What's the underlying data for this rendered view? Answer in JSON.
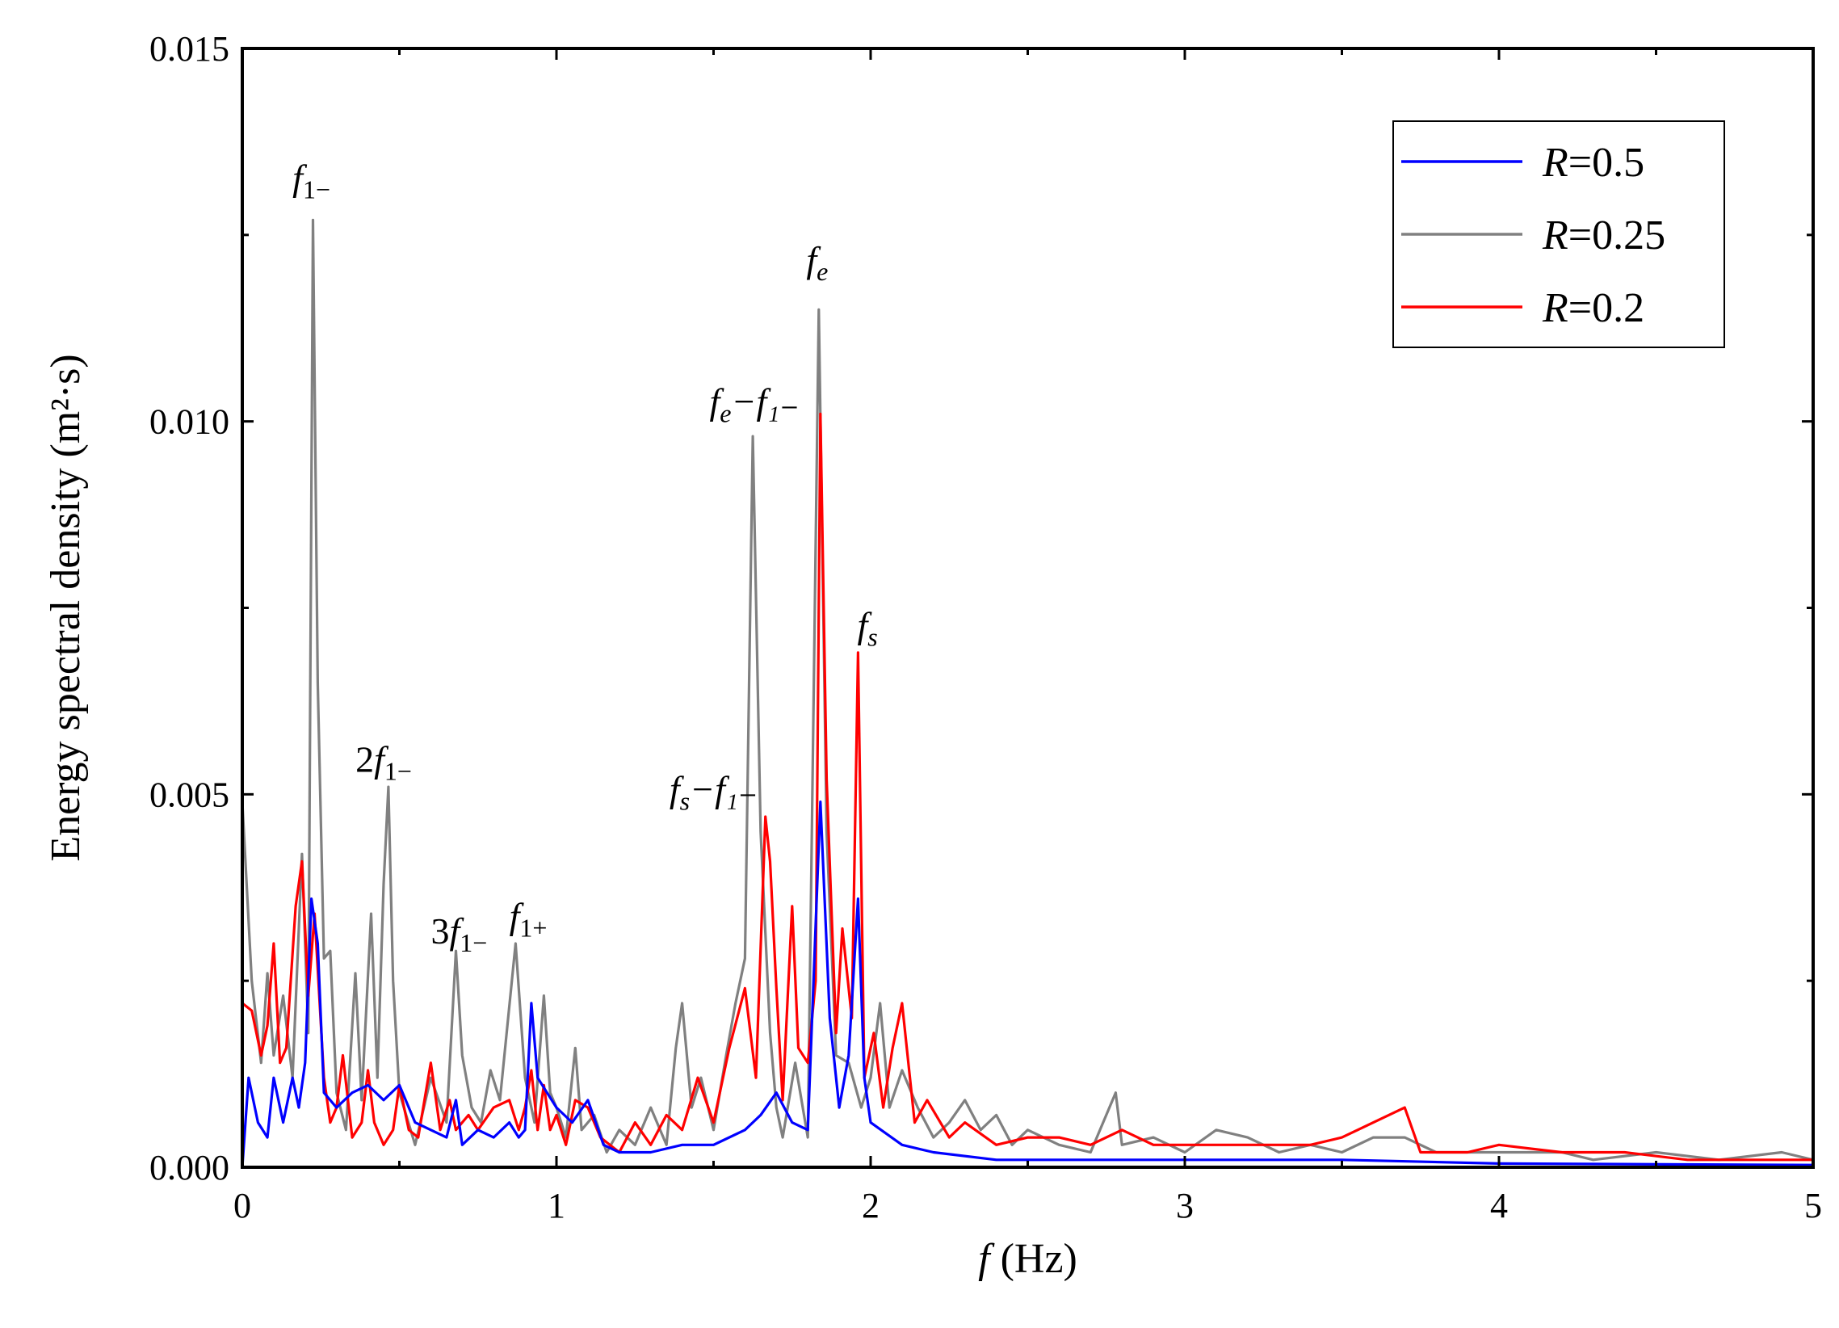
{
  "chart_data": {
    "type": "line",
    "xlabel": {
      "var": "f",
      "unit": " (Hz)"
    },
    "ylabel": "Energy spectral density (m²·s)",
    "xlim": [
      0,
      5
    ],
    "ylim": [
      0,
      0.015
    ],
    "xticks": [
      "0",
      "1",
      "2",
      "3",
      "4",
      "5"
    ],
    "yticks": [
      "0.000",
      "0.005",
      "0.010",
      "0.015"
    ],
    "grid": false,
    "legend_position": "top-right",
    "series": [
      {
        "name": "R=0.5",
        "color": "#0000ff",
        "points": [
          [
            0,
            0
          ],
          [
            0.02,
            0.0012
          ],
          [
            0.05,
            0.0006
          ],
          [
            0.08,
            0.0004
          ],
          [
            0.1,
            0.0012
          ],
          [
            0.13,
            0.0006
          ],
          [
            0.16,
            0.0012
          ],
          [
            0.18,
            0.0008
          ],
          [
            0.2,
            0.0014
          ],
          [
            0.22,
            0.0036
          ],
          [
            0.24,
            0.003
          ],
          [
            0.26,
            0.001
          ],
          [
            0.3,
            0.0008
          ],
          [
            0.35,
            0.001
          ],
          [
            0.4,
            0.0011
          ],
          [
            0.45,
            0.0009
          ],
          [
            0.5,
            0.0011
          ],
          [
            0.55,
            0.0006
          ],
          [
            0.6,
            0.0005
          ],
          [
            0.65,
            0.0004
          ],
          [
            0.68,
            0.0009
          ],
          [
            0.7,
            0.0003
          ],
          [
            0.75,
            0.0005
          ],
          [
            0.8,
            0.0004
          ],
          [
            0.85,
            0.0006
          ],
          [
            0.88,
            0.0004
          ],
          [
            0.9,
            0.0005
          ],
          [
            0.92,
            0.0022
          ],
          [
            0.94,
            0.0012
          ],
          [
            0.97,
            0.001
          ],
          [
            1.0,
            0.0008
          ],
          [
            1.05,
            0.0006
          ],
          [
            1.1,
            0.0009
          ],
          [
            1.15,
            0.0003
          ],
          [
            1.2,
            0.0002
          ],
          [
            1.3,
            0.0002
          ],
          [
            1.4,
            0.0003
          ],
          [
            1.5,
            0.0003
          ],
          [
            1.6,
            0.0005
          ],
          [
            1.65,
            0.0007
          ],
          [
            1.7,
            0.001
          ],
          [
            1.75,
            0.0006
          ],
          [
            1.8,
            0.0005
          ],
          [
            1.84,
            0.0049
          ],
          [
            1.87,
            0.002
          ],
          [
            1.9,
            0.0008
          ],
          [
            1.93,
            0.0015
          ],
          [
            1.96,
            0.0036
          ],
          [
            1.98,
            0.0012
          ],
          [
            2.0,
            0.0006
          ],
          [
            2.1,
            0.0003
          ],
          [
            2.2,
            0.0002
          ],
          [
            2.4,
            0.0001
          ],
          [
            2.6,
            0.0001
          ],
          [
            3.0,
            0.0001
          ],
          [
            3.5,
            0.0001
          ],
          [
            4.0,
            5e-05
          ],
          [
            5.0,
            3e-05
          ]
        ]
      },
      {
        "name": "R=0.25",
        "color": "#808080",
        "points": [
          [
            0,
            0.0049
          ],
          [
            0.03,
            0.0025
          ],
          [
            0.06,
            0.0014
          ],
          [
            0.08,
            0.0026
          ],
          [
            0.1,
            0.0015
          ],
          [
            0.13,
            0.0023
          ],
          [
            0.16,
            0.0012
          ],
          [
            0.19,
            0.0042
          ],
          [
            0.21,
            0.0018
          ],
          [
            0.225,
            0.0127
          ],
          [
            0.24,
            0.0065
          ],
          [
            0.26,
            0.0028
          ],
          [
            0.28,
            0.0029
          ],
          [
            0.3,
            0.001
          ],
          [
            0.33,
            0.0005
          ],
          [
            0.36,
            0.0026
          ],
          [
            0.38,
            0.0009
          ],
          [
            0.41,
            0.0034
          ],
          [
            0.43,
            0.0012
          ],
          [
            0.45,
            0.0038
          ],
          [
            0.465,
            0.0051
          ],
          [
            0.48,
            0.0025
          ],
          [
            0.5,
            0.001
          ],
          [
            0.55,
            0.0003
          ],
          [
            0.6,
            0.0012
          ],
          [
            0.65,
            0.0006
          ],
          [
            0.68,
            0.0029
          ],
          [
            0.7,
            0.0015
          ],
          [
            0.73,
            0.0008
          ],
          [
            0.76,
            0.0006
          ],
          [
            0.79,
            0.0013
          ],
          [
            0.82,
            0.0009
          ],
          [
            0.87,
            0.003
          ],
          [
            0.9,
            0.0012
          ],
          [
            0.93,
            0.0006
          ],
          [
            0.96,
            0.0023
          ],
          [
            0.98,
            0.001
          ],
          [
            1.0,
            0.0008
          ],
          [
            1.03,
            0.0004
          ],
          [
            1.06,
            0.0016
          ],
          [
            1.08,
            0.0005
          ],
          [
            1.12,
            0.0007
          ],
          [
            1.16,
            0.0002
          ],
          [
            1.2,
            0.0005
          ],
          [
            1.25,
            0.0003
          ],
          [
            1.3,
            0.0008
          ],
          [
            1.35,
            0.0003
          ],
          [
            1.38,
            0.0016
          ],
          [
            1.4,
            0.0022
          ],
          [
            1.43,
            0.0008
          ],
          [
            1.46,
            0.0012
          ],
          [
            1.5,
            0.0005
          ],
          [
            1.54,
            0.0015
          ],
          [
            1.57,
            0.0022
          ],
          [
            1.6,
            0.0028
          ],
          [
            1.625,
            0.0098
          ],
          [
            1.65,
            0.0045
          ],
          [
            1.68,
            0.0018
          ],
          [
            1.7,
            0.0008
          ],
          [
            1.72,
            0.0004
          ],
          [
            1.76,
            0.0014
          ],
          [
            1.8,
            0.0004
          ],
          [
            1.835,
            0.0115
          ],
          [
            1.86,
            0.0045
          ],
          [
            1.89,
            0.0015
          ],
          [
            1.93,
            0.0014
          ],
          [
            1.97,
            0.0008
          ],
          [
            2.0,
            0.0012
          ],
          [
            2.03,
            0.0022
          ],
          [
            2.06,
            0.0008
          ],
          [
            2.1,
            0.0013
          ],
          [
            2.15,
            0.0008
          ],
          [
            2.2,
            0.0004
          ],
          [
            2.25,
            0.0006
          ],
          [
            2.3,
            0.0009
          ],
          [
            2.35,
            0.0005
          ],
          [
            2.4,
            0.0007
          ],
          [
            2.45,
            0.0003
          ],
          [
            2.5,
            0.0005
          ],
          [
            2.6,
            0.0003
          ],
          [
            2.7,
            0.0002
          ],
          [
            2.78,
            0.001
          ],
          [
            2.8,
            0.0003
          ],
          [
            2.9,
            0.0004
          ],
          [
            3.0,
            0.0002
          ],
          [
            3.1,
            0.0005
          ],
          [
            3.2,
            0.0004
          ],
          [
            3.3,
            0.0002
          ],
          [
            3.4,
            0.0003
          ],
          [
            3.5,
            0.0002
          ],
          [
            3.6,
            0.0004
          ],
          [
            3.7,
            0.0004
          ],
          [
            3.8,
            0.0002
          ],
          [
            3.9,
            0.0002
          ],
          [
            4.0,
            0.0002
          ],
          [
            4.2,
            0.0002
          ],
          [
            4.3,
            0.0001
          ],
          [
            4.5,
            0.0002
          ],
          [
            4.7,
            0.0001
          ],
          [
            4.9,
            0.0002
          ],
          [
            5.0,
            0.0001
          ]
        ]
      },
      {
        "name": "R=0.2",
        "color": "#ff0000",
        "points": [
          [
            0,
            0.0022
          ],
          [
            0.03,
            0.0021
          ],
          [
            0.06,
            0.0015
          ],
          [
            0.08,
            0.0019
          ],
          [
            0.1,
            0.003
          ],
          [
            0.12,
            0.0014
          ],
          [
            0.14,
            0.0016
          ],
          [
            0.17,
            0.0035
          ],
          [
            0.19,
            0.0041
          ],
          [
            0.21,
            0.0023
          ],
          [
            0.23,
            0.0034
          ],
          [
            0.26,
            0.0012
          ],
          [
            0.28,
            0.0006
          ],
          [
            0.3,
            0.0008
          ],
          [
            0.32,
            0.0015
          ],
          [
            0.35,
            0.0004
          ],
          [
            0.38,
            0.0006
          ],
          [
            0.4,
            0.0013
          ],
          [
            0.42,
            0.0006
          ],
          [
            0.45,
            0.0003
          ],
          [
            0.48,
            0.0005
          ],
          [
            0.5,
            0.0011
          ],
          [
            0.53,
            0.0005
          ],
          [
            0.56,
            0.0004
          ],
          [
            0.6,
            0.0014
          ],
          [
            0.63,
            0.0005
          ],
          [
            0.66,
            0.0009
          ],
          [
            0.68,
            0.0005
          ],
          [
            0.72,
            0.0007
          ],
          [
            0.75,
            0.0005
          ],
          [
            0.8,
            0.0008
          ],
          [
            0.85,
            0.0009
          ],
          [
            0.88,
            0.0005
          ],
          [
            0.9,
            0.0008
          ],
          [
            0.92,
            0.0013
          ],
          [
            0.94,
            0.0005
          ],
          [
            0.96,
            0.0011
          ],
          [
            0.98,
            0.0005
          ],
          [
            1.0,
            0.0007
          ],
          [
            1.03,
            0.0003
          ],
          [
            1.06,
            0.0009
          ],
          [
            1.1,
            0.0008
          ],
          [
            1.14,
            0.0004
          ],
          [
            1.2,
            0.0002
          ],
          [
            1.25,
            0.0006
          ],
          [
            1.3,
            0.0003
          ],
          [
            1.35,
            0.0007
          ],
          [
            1.4,
            0.0005
          ],
          [
            1.45,
            0.0012
          ],
          [
            1.5,
            0.0006
          ],
          [
            1.55,
            0.0016
          ],
          [
            1.6,
            0.0024
          ],
          [
            1.635,
            0.0012
          ],
          [
            1.665,
            0.0047
          ],
          [
            1.68,
            0.0041
          ],
          [
            1.7,
            0.0024
          ],
          [
            1.72,
            0.0009
          ],
          [
            1.75,
            0.0035
          ],
          [
            1.77,
            0.0016
          ],
          [
            1.8,
            0.0014
          ],
          [
            1.825,
            0.0025
          ],
          [
            1.84,
            0.0101
          ],
          [
            1.86,
            0.0052
          ],
          [
            1.89,
            0.0018
          ],
          [
            1.91,
            0.0032
          ],
          [
            1.94,
            0.002
          ],
          [
            1.96,
            0.0069
          ],
          [
            1.98,
            0.0012
          ],
          [
            2.01,
            0.0018
          ],
          [
            2.04,
            0.0008
          ],
          [
            2.07,
            0.0016
          ],
          [
            2.1,
            0.0022
          ],
          [
            2.14,
            0.0006
          ],
          [
            2.18,
            0.0009
          ],
          [
            2.25,
            0.0004
          ],
          [
            2.3,
            0.0006
          ],
          [
            2.4,
            0.0003
          ],
          [
            2.5,
            0.0004
          ],
          [
            2.6,
            0.0004
          ],
          [
            2.7,
            0.0003
          ],
          [
            2.8,
            0.0005
          ],
          [
            2.9,
            0.0003
          ],
          [
            3.0,
            0.0003
          ],
          [
            3.2,
            0.0003
          ],
          [
            3.4,
            0.0003
          ],
          [
            3.5,
            0.0004
          ],
          [
            3.6,
            0.0006
          ],
          [
            3.7,
            0.0008
          ],
          [
            3.75,
            0.0002
          ],
          [
            3.9,
            0.0002
          ],
          [
            4.0,
            0.0003
          ],
          [
            4.2,
            0.0002
          ],
          [
            4.4,
            0.0002
          ],
          [
            4.6,
            0.0001
          ],
          [
            4.8,
            0.0001
          ],
          [
            5.0,
            0.0001
          ]
        ]
      }
    ],
    "annotations": [
      {
        "pre": "",
        "var": "f",
        "sub": "1−",
        "post": "",
        "x": 0.22,
        "y": 0.0131
      },
      {
        "pre": "2",
        "var": "f",
        "sub": "1−",
        "post": "",
        "x": 0.45,
        "y": 0.0053
      },
      {
        "pre": "3",
        "var": "f",
        "sub": "1−",
        "post": "",
        "x": 0.69,
        "y": 0.003
      },
      {
        "pre": "",
        "var": "f",
        "sub": "1+",
        "post": "",
        "x": 0.91,
        "y": 0.0032
      },
      {
        "pre": "",
        "var": "f",
        "sub": "e",
        "post": "",
        "x": 1.83,
        "y": 0.012
      },
      {
        "pre": "",
        "var": "f",
        "sub": "e",
        "post": "−f₁₋",
        "x": 1.63,
        "y": 0.0101
      },
      {
        "pre": "",
        "var": "f",
        "sub": "s",
        "post": "",
        "x": 1.99,
        "y": 0.0071
      },
      {
        "pre": "",
        "var": "f",
        "sub": "s",
        "post": "−f₁₋",
        "x": 1.5,
        "y": 0.0049
      }
    ]
  }
}
